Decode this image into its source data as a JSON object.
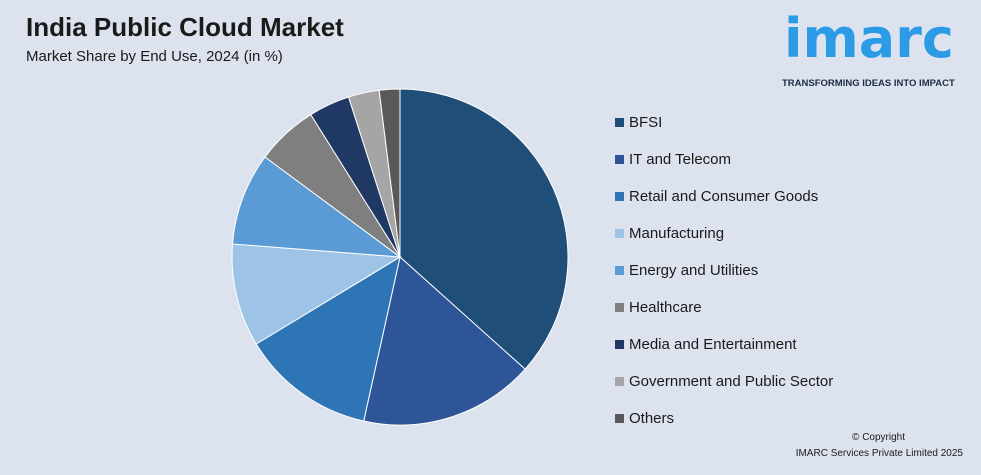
{
  "header": {
    "title": "India Public Cloud Market",
    "subtitle": "Market Share by End Use, 2024 (in %)"
  },
  "logo": {
    "word": "imarc",
    "tagline": "TRANSFORMING IDEAS INTO IMPACT",
    "color": "#2b9be6"
  },
  "chart_data": {
    "type": "pie",
    "title": "India Public Cloud Market",
    "subtitle": "Market Share by End Use, 2024 (in %)",
    "categories": [
      "BFSI",
      "IT and Telecom",
      "Retail and Consumer Goods",
      "Manufacturing",
      "Energy and Utilities",
      "Healthcare",
      "Media and Entertainment",
      "Government and Public Sector",
      "Others"
    ],
    "values": [
      37,
      17,
      13,
      10,
      9,
      6,
      4,
      3,
      2
    ],
    "colors": [
      "#1f4e79",
      "#2e5597",
      "#2e75b6",
      "#9dc3e6",
      "#5b9bd5",
      "#7f7f7f",
      "#203864",
      "#a5a5a5",
      "#595959"
    ],
    "start_angle": "12 o'clock",
    "direction": "clockwise",
    "legend_position": "right"
  },
  "footer": {
    "copyright_line1": "© Copyright",
    "copyright_line2": "IMARC Services Private Limited 2025"
  }
}
